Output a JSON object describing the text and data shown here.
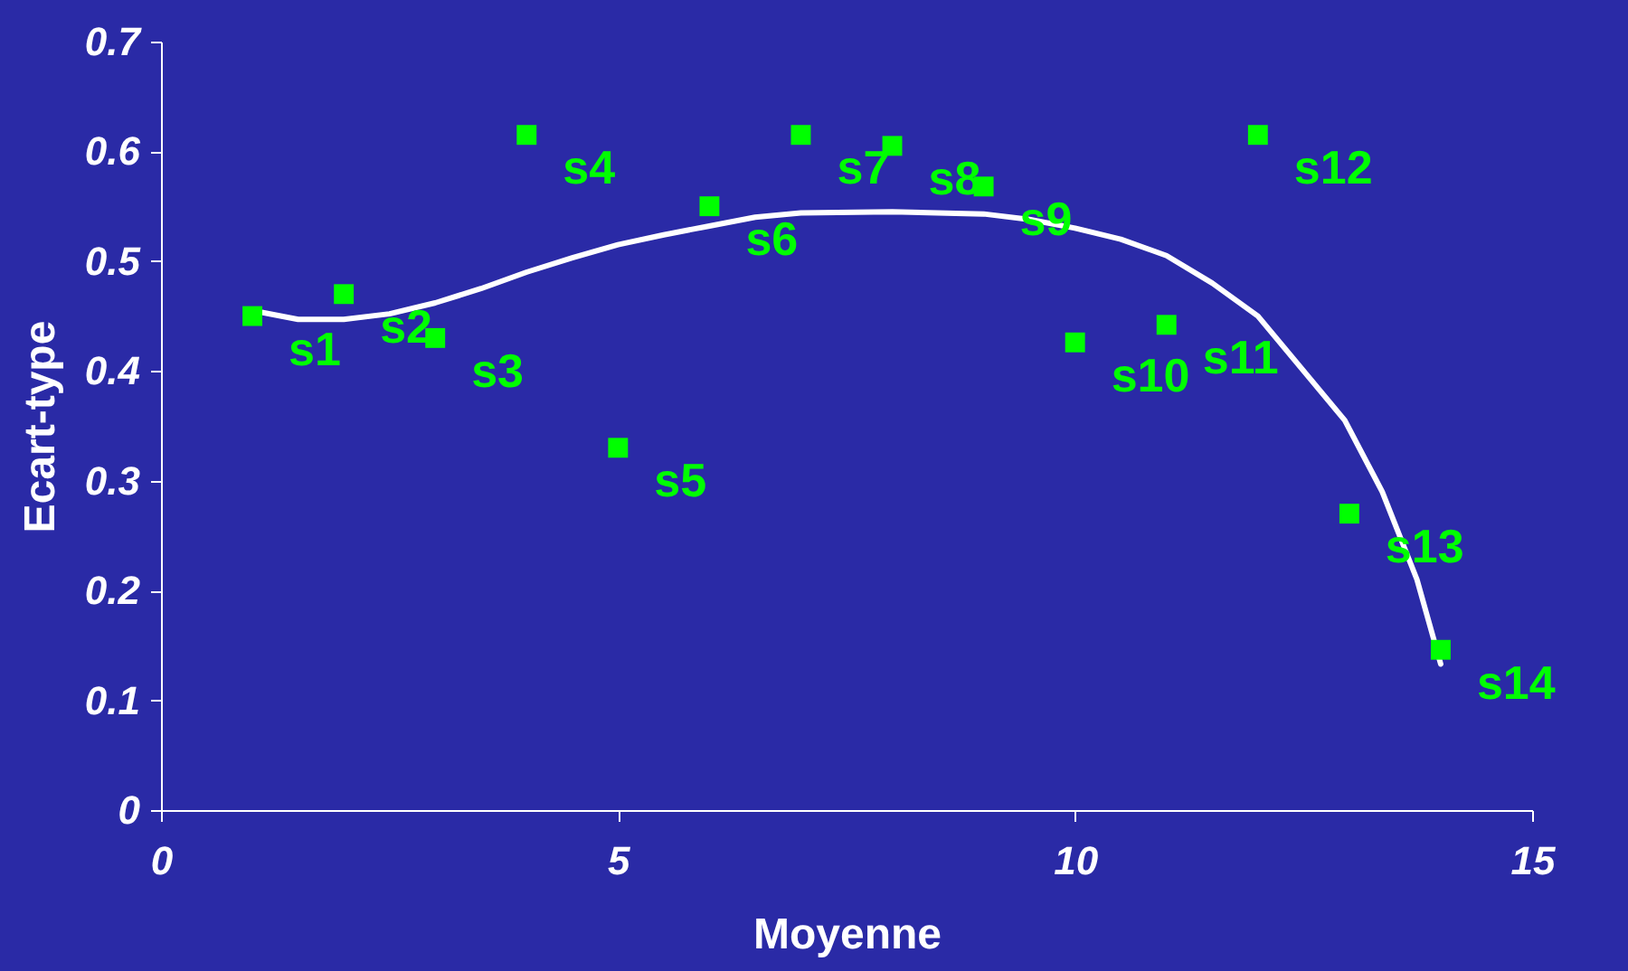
{
  "chart_data": {
    "type": "scatter",
    "xlabel": "Moyenne",
    "ylabel": "Ecart-type",
    "xlim": [
      0,
      15
    ],
    "ylim": [
      0,
      0.7
    ],
    "xticks": [
      0,
      5,
      10,
      15
    ],
    "yticks": [
      0,
      0.1,
      0.2,
      0.3,
      0.4,
      0.5,
      0.6,
      0.7
    ],
    "grid": false,
    "series": [
      {
        "color": "#00ff00",
        "marker": "square",
        "x": [
          1,
          2,
          3,
          4,
          5,
          6,
          7,
          8,
          9,
          10,
          11,
          12,
          13,
          14
        ],
        "values": [
          0.45,
          0.47,
          0.43,
          0.615,
          0.33,
          0.55,
          0.615,
          0.605,
          0.568,
          0.426,
          0.442,
          0.615,
          0.27,
          0.146
        ]
      },
      {
        "type": "line",
        "color": "#ffffff",
        "line_style": "solid",
        "marker": "none",
        "x": [
          1,
          1.5,
          2,
          2.5,
          3,
          3.5,
          4,
          4.5,
          5,
          5.5,
          6,
          6.5,
          7,
          8,
          9,
          9.5,
          10,
          10.5,
          11,
          11.5,
          12,
          12.4,
          12.95,
          13.36,
          13.74,
          14
        ],
        "values": [
          0.455,
          0.447,
          0.447,
          0.452,
          0.462,
          0.475,
          0.49,
          0.503,
          0.515,
          0.524,
          0.532,
          0.54,
          0.544,
          0.545,
          0.543,
          0.538,
          0.53,
          0.52,
          0.505,
          0.48,
          0.45,
          0.41,
          0.355,
          0.29,
          0.21,
          0.133
        ]
      }
    ],
    "annotations": [
      {
        "text": "s1",
        "x": 1,
        "y": 0.45
      },
      {
        "text": "s2",
        "x": 2,
        "y": 0.47
      },
      {
        "text": "s3",
        "x": 3,
        "y": 0.43
      },
      {
        "text": "s4",
        "x": 4,
        "y": 0.615
      },
      {
        "text": "s5",
        "x": 5,
        "y": 0.33
      },
      {
        "text": "s6",
        "x": 6,
        "y": 0.55
      },
      {
        "text": "s7",
        "x": 7,
        "y": 0.615
      },
      {
        "text": "s8",
        "x": 8,
        "y": 0.605
      },
      {
        "text": "s9",
        "x": 9,
        "y": 0.568
      },
      {
        "text": "s10",
        "x": 10,
        "y": 0.426
      },
      {
        "text": "s11",
        "x": 11,
        "y": 0.442
      },
      {
        "text": "s12",
        "x": 12,
        "y": 0.615
      },
      {
        "text": "s13",
        "x": 13,
        "y": 0.27
      },
      {
        "text": "s14",
        "x": 14,
        "y": 0.146
      }
    ]
  }
}
